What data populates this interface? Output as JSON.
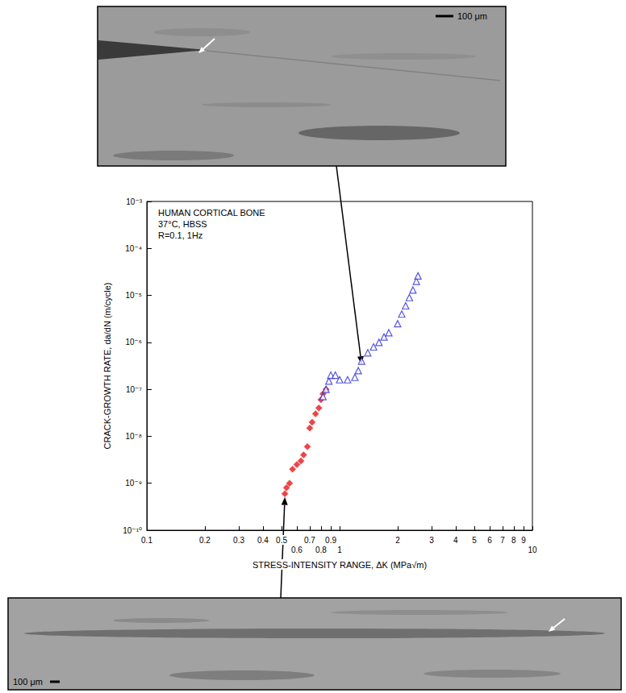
{
  "chart_data": {
    "type": "scatter",
    "annotations": [
      "HUMAN CORTICAL BONE",
      "37°C, HBSS",
      "R=0.1, 1Hz"
    ],
    "x_label": "STRESS-INTENSITY RANGE, ΔK (MPa√m)",
    "y_label": "CRACK-GROWTH RATE, da/dN (m/cycle)",
    "log": true,
    "grid": false,
    "xlim": [
      0.1,
      10
    ],
    "ylim": [
      1e-10,
      0.001
    ],
    "xticks": [
      0.1,
      0.2,
      0.3,
      0.4,
      0.5,
      0.6,
      0.7,
      0.8,
      0.9,
      1,
      2,
      3,
      4,
      5,
      6,
      7,
      8,
      9,
      10
    ],
    "yticks": [
      {
        "value": 1e-10,
        "label": "10⁻¹⁰"
      },
      {
        "value": 1e-09,
        "label": "10⁻⁹"
      },
      {
        "value": 1e-08,
        "label": "10⁻⁸"
      },
      {
        "value": 1e-07,
        "label": "10⁻⁷"
      },
      {
        "value": 1e-06,
        "label": "10⁻⁶"
      },
      {
        "value": 1e-05,
        "label": "10⁻⁵"
      },
      {
        "value": 0.0001,
        "label": "10⁻⁴"
      },
      {
        "value": 0.001,
        "label": "10⁻³"
      }
    ],
    "series": [
      {
        "color": "#e8161b",
        "marker": "diamond",
        "x": [
          0.52,
          0.53,
          0.55,
          0.57,
          0.6,
          0.63,
          0.65,
          0.68,
          0.7,
          0.72,
          0.75,
          0.78,
          0.8,
          0.82,
          0.85
        ],
        "values": [
          6e-10,
          8e-10,
          1e-09,
          2e-09,
          2.5e-09,
          3e-09,
          4e-09,
          6e-09,
          1.5e-08,
          2e-08,
          3e-08,
          4e-08,
          6e-08,
          8e-08,
          1e-07
        ]
      },
      {
        "color": "#2c2cd8",
        "marker": "triangle-open",
        "x": [
          0.82,
          0.85,
          0.88,
          0.9,
          0.95,
          1.0,
          1.1,
          1.2,
          1.25,
          1.3,
          1.4,
          1.5,
          1.6,
          1.7,
          1.8,
          2.0,
          2.1,
          2.2,
          2.3,
          2.4,
          2.5,
          2.55
        ],
        "values": [
          7e-08,
          1e-07,
          1.5e-07,
          2e-07,
          2e-07,
          1.6e-07,
          1.6e-07,
          1.8e-07,
          2.5e-07,
          4e-07,
          6e-07,
          8e-07,
          1e-06,
          1.3e-06,
          1.6e-06,
          2.5e-06,
          4e-06,
          6e-06,
          9e-06,
          1.3e-05,
          2e-05,
          2.6e-05
        ]
      }
    ]
  },
  "top_micrograph": {
    "scale_bar": "100 μm",
    "points_to": [
      1.3,
      4e-07
    ]
  },
  "bottom_micrograph": {
    "scale_bar": "100 μm",
    "points_to": [
      0.52,
      6e-10
    ]
  }
}
